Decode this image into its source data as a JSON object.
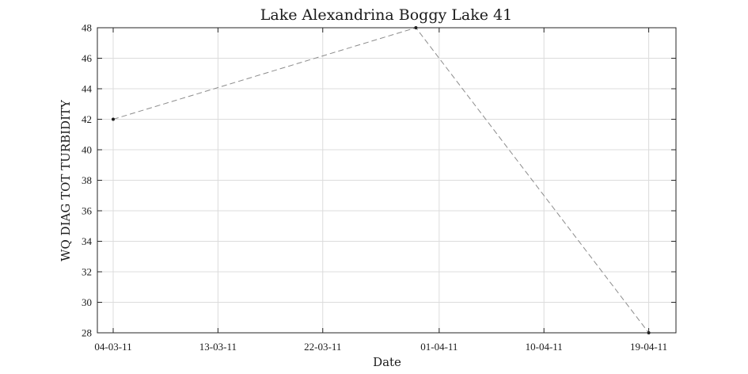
{
  "chart_data": {
    "type": "line",
    "title": "Lake Alexandrina Boggy Lake 41",
    "xlabel": "Date",
    "ylabel": "WQ DIAG TOT TURBIDITY",
    "x_ticks": [
      "04-03-11",
      "13-03-11",
      "22-03-11",
      "01-04-11",
      "10-04-11",
      "19-04-11"
    ],
    "y_ticks": [
      "28",
      "30",
      "32",
      "34",
      "36",
      "38",
      "40",
      "42",
      "44",
      "46",
      "48"
    ],
    "ylim": [
      28,
      48
    ],
    "xlim": [
      "04-03-11",
      "21-04-11"
    ],
    "grid": true,
    "series": [
      {
        "x": [
          "04-03-11",
          "30-03-11",
          "19-04-11"
        ],
        "y": [
          42,
          48,
          28
        ],
        "line_style": "dashed",
        "line_color": "#8c8c8c",
        "marker_color": "#1a1a1a"
      }
    ]
  }
}
